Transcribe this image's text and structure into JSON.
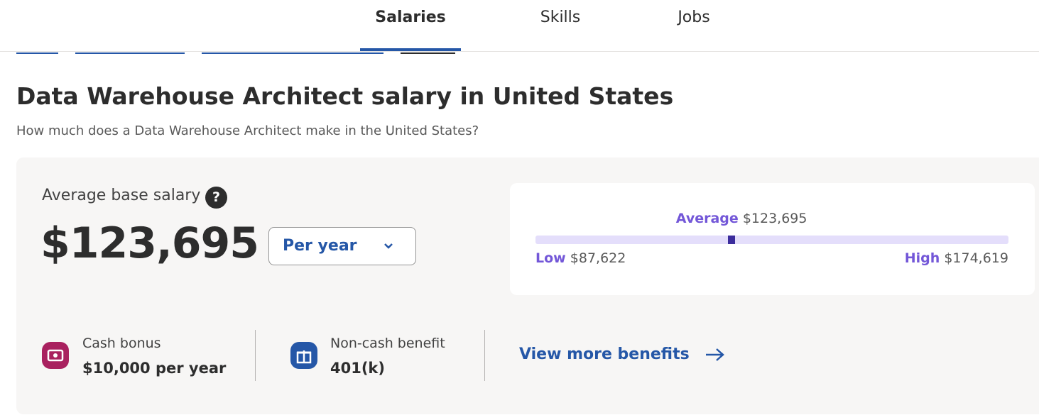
{
  "nav": {
    "tabs": [
      "Salaries",
      "Skills",
      "Jobs"
    ]
  },
  "header": {
    "title": "Data Warehouse Architect salary in United States",
    "subtitle": "How much does a Data Warehouse Architect make in the United States?"
  },
  "salary": {
    "label": "Average base salary",
    "help": "?",
    "amount": "$123,695",
    "period": "Per year"
  },
  "range": {
    "average_label": "Average",
    "average": "$123,695",
    "low_label": "Low",
    "low": "$87,622",
    "high_label": "High",
    "high": "$174,619"
  },
  "benefits": [
    {
      "label": "Cash bonus",
      "value": "$10,000 per year"
    },
    {
      "label": "Non-cash benefit",
      "value": "401(k)"
    }
  ],
  "link": "View more benefits"
}
